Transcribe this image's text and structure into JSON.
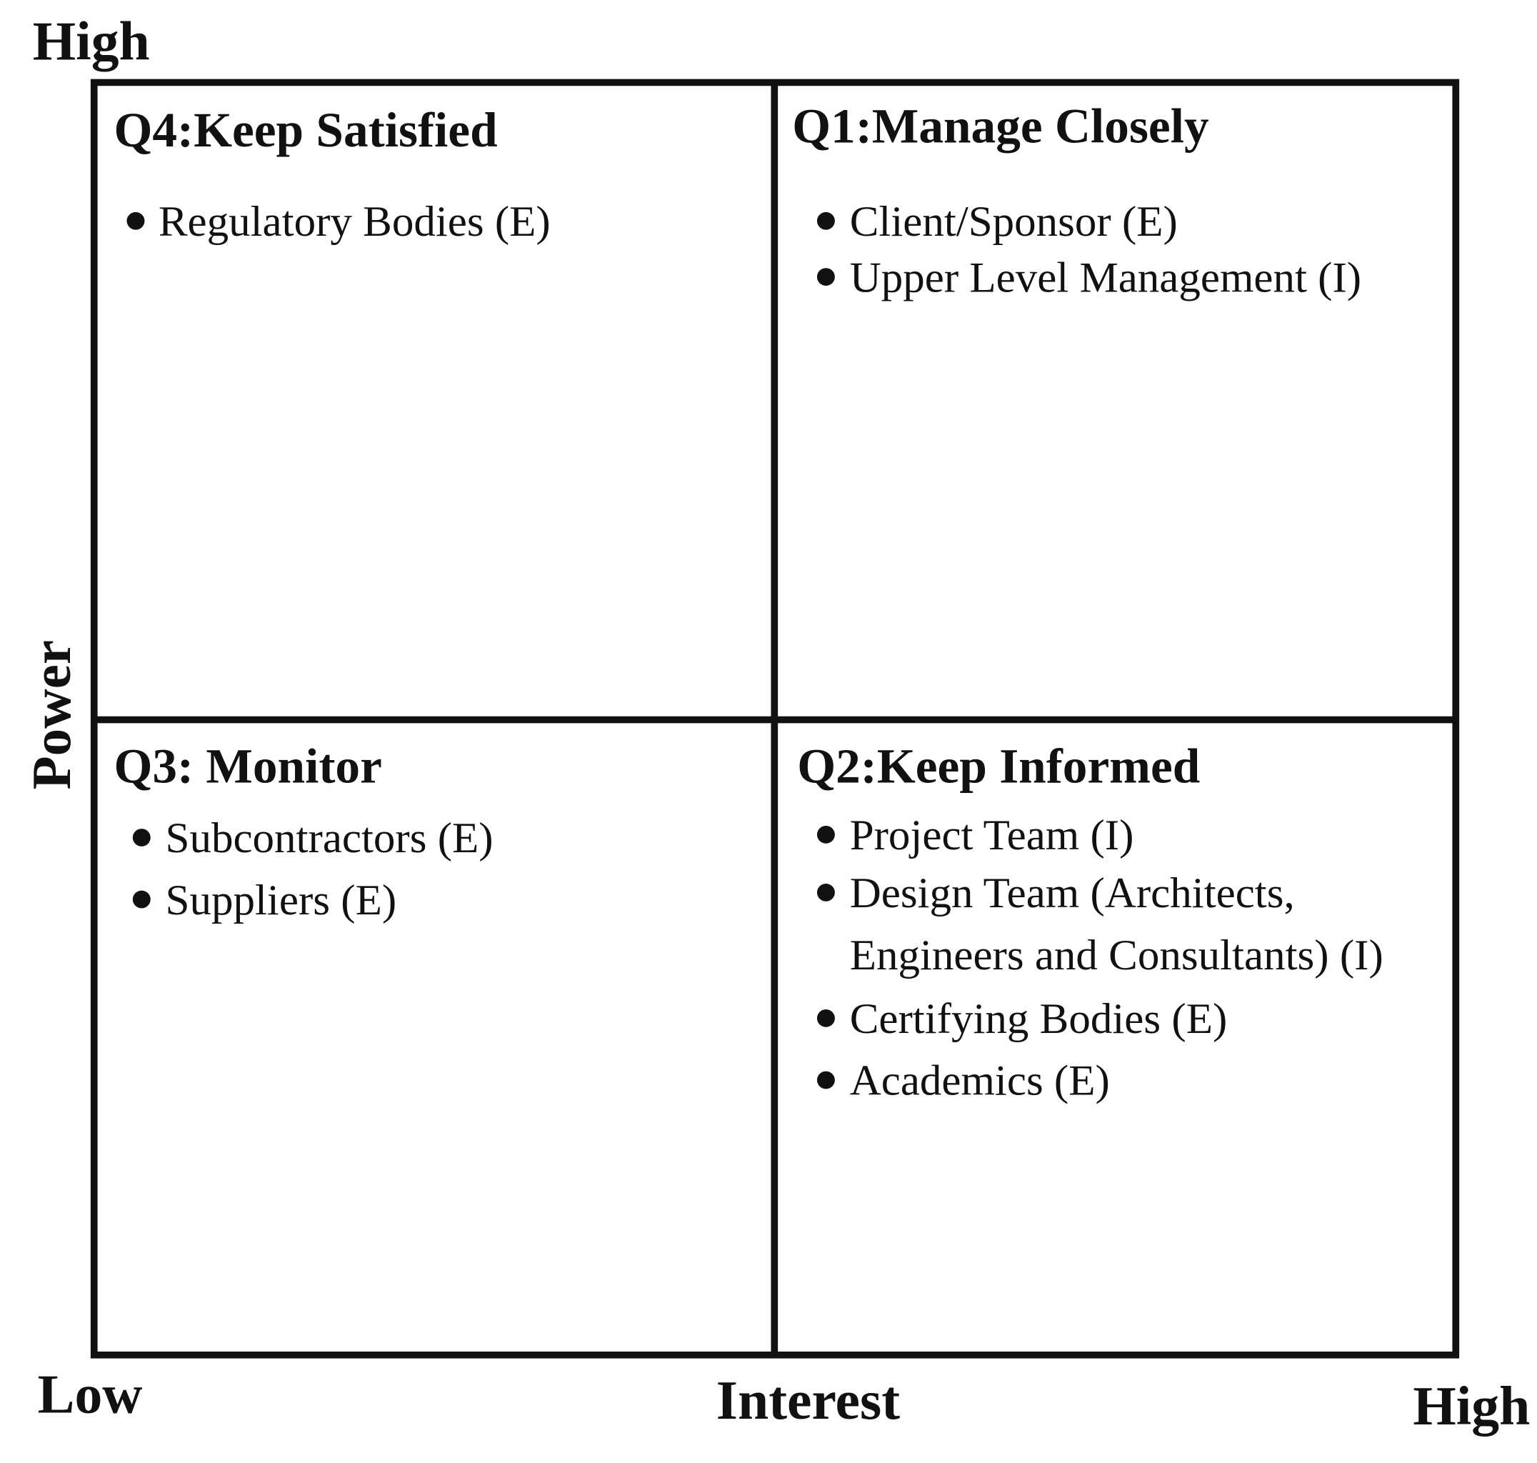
{
  "axes": {
    "y_high": "High",
    "y_label": "Power",
    "x_low": "Low",
    "x_label": "Interest",
    "x_high": "High"
  },
  "quadrants": [
    {
      "title": "Q4:Keep Satisfied",
      "items": [
        [
          "Regulatory Bodies (E)"
        ]
      ]
    },
    {
      "title": "Q1:Manage Closely",
      "items": [
        [
          "Client/Sponsor (E)"
        ],
        [
          "Upper Level Management (I)"
        ]
      ]
    },
    {
      "title": "Q3: Monitor",
      "items": [
        [
          "Subcontractors (E)"
        ],
        [
          "Suppliers (E)"
        ]
      ]
    },
    {
      "title": "Q2:Keep Informed",
      "items": [
        [
          "Project Team (I)"
        ],
        [
          "Design Team (Architects,",
          "Engineers and Consultants) (I)"
        ],
        [
          "Certifying Bodies (E)"
        ],
        [
          "Academics (E)"
        ]
      ]
    }
  ]
}
